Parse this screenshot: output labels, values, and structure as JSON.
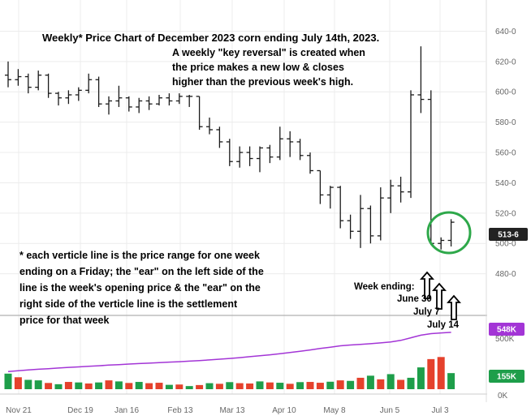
{
  "annotations": {
    "title": "Weekly* Price Chart of December 2023 corn ending July 14th, 2023.",
    "key_reversal": [
      "A weekly \"key reversal\" is created when",
      "the price makes a new low & closes",
      "higher than the previous week's high."
    ],
    "footnote": [
      "* each verticle line is the price range for one week",
      "ending on a Friday; the \"ear\" on the left side of the",
      "line is the week's opening price & the \"ear\" on the",
      "right side of the verticle line is the settlement",
      "price for that week"
    ],
    "week_ending": "Week ending:",
    "june30": "June 30",
    "july7": "July  7",
    "july14": "July 14"
  },
  "badges": {
    "price": "513-6",
    "ma": "548K",
    "volume": "155K"
  },
  "colors": {
    "price_bar": "#1a1a1a",
    "ma_line": "#a335d6",
    "vol_up": "#1e9e4a",
    "vol_down": "#e5412c",
    "circle": "#2ea84a",
    "badge_dark": "#222222",
    "badge_purple": "#a335d6",
    "badge_green": "#1e9e4a"
  },
  "chart_data": {
    "type": "ohlc",
    "title": "Weekly* Price Chart of December 2023 corn ending July 14th, 2023.",
    "x_tick_labels": [
      "Nov 21",
      "Dec 19",
      "Jan 16",
      "Feb 13",
      "Mar 13",
      "Apr 10",
      "May 8",
      "Jun 5",
      "Jul 3"
    ],
    "y_price_ticks": [
      "480-0",
      "500-0",
      "520-0",
      "540-0",
      "560-0",
      "580-0",
      "600-0",
      "620-0",
      "640-0"
    ],
    "y_price_range": [
      452,
      652
    ],
    "y_volume_ticks": [
      "0K",
      "500K"
    ],
    "grid": true,
    "last_price": "513-6",
    "weeks": [
      {
        "o": 611,
        "h": 620,
        "l": 603,
        "c": 608
      },
      {
        "o": 608,
        "h": 615,
        "l": 604,
        "c": 610
      },
      {
        "o": 610,
        "h": 612,
        "l": 599,
        "c": 603
      },
      {
        "o": 603,
        "h": 614,
        "l": 601,
        "c": 611
      },
      {
        "o": 611,
        "h": 612,
        "l": 596,
        "c": 599
      },
      {
        "o": 599,
        "h": 600,
        "l": 591,
        "c": 596
      },
      {
        "o": 596,
        "h": 601,
        "l": 592,
        "c": 598
      },
      {
        "o": 598,
        "h": 603,
        "l": 594,
        "c": 601
      },
      {
        "o": 601,
        "h": 612,
        "l": 599,
        "c": 608
      },
      {
        "o": 608,
        "h": 610,
        "l": 590,
        "c": 592
      },
      {
        "o": 592,
        "h": 597,
        "l": 585,
        "c": 594
      },
      {
        "o": 594,
        "h": 604,
        "l": 590,
        "c": 596
      },
      {
        "o": 596,
        "h": 597,
        "l": 587,
        "c": 590
      },
      {
        "o": 590,
        "h": 596,
        "l": 586,
        "c": 594
      },
      {
        "o": 594,
        "h": 597,
        "l": 588,
        "c": 592
      },
      {
        "o": 592,
        "h": 598,
        "l": 591,
        "c": 596
      },
      {
        "o": 596,
        "h": 599,
        "l": 591,
        "c": 594
      },
      {
        "o": 594,
        "h": 599,
        "l": 592,
        "c": 597
      },
      {
        "o": 597,
        "h": 598,
        "l": 590,
        "c": 597
      },
      {
        "o": 597,
        "h": 597,
        "l": 575,
        "c": 577
      },
      {
        "o": 577,
        "h": 583,
        "l": 572,
        "c": 575
      },
      {
        "o": 575,
        "h": 577,
        "l": 563,
        "c": 567
      },
      {
        "o": 567,
        "h": 569,
        "l": 551,
        "c": 554
      },
      {
        "o": 554,
        "h": 564,
        "l": 550,
        "c": 560
      },
      {
        "o": 560,
        "h": 564,
        "l": 551,
        "c": 556
      },
      {
        "o": 556,
        "h": 564,
        "l": 547,
        "c": 563
      },
      {
        "o": 563,
        "h": 565,
        "l": 553,
        "c": 557
      },
      {
        "o": 557,
        "h": 577,
        "l": 555,
        "c": 569
      },
      {
        "o": 569,
        "h": 574,
        "l": 557,
        "c": 567
      },
      {
        "o": 567,
        "h": 569,
        "l": 555,
        "c": 558
      },
      {
        "o": 558,
        "h": 560,
        "l": 546,
        "c": 548
      },
      {
        "o": 548,
        "h": 548,
        "l": 526,
        "c": 532
      },
      {
        "o": 532,
        "h": 538,
        "l": 523,
        "c": 537
      },
      {
        "o": 537,
        "h": 538,
        "l": 510,
        "c": 515
      },
      {
        "o": 515,
        "h": 519,
        "l": 503,
        "c": 508
      },
      {
        "o": 508,
        "h": 532,
        "l": 497,
        "c": 523
      },
      {
        "o": 523,
        "h": 525,
        "l": 500,
        "c": 505
      },
      {
        "o": 505,
        "h": 537,
        "l": 502,
        "c": 530
      },
      {
        "o": 530,
        "h": 542,
        "l": 520,
        "c": 538
      },
      {
        "o": 538,
        "h": 544,
        "l": 527,
        "c": 534
      },
      {
        "o": 534,
        "h": 601,
        "l": 530,
        "c": 598
      },
      {
        "o": 598,
        "h": 630,
        "l": 586,
        "c": 595
      },
      {
        "o": 595,
        "h": 601,
        "l": 499,
        "c": 500
      },
      {
        "o": 500,
        "h": 504,
        "l": 496,
        "c": 502
      },
      {
        "o": 502,
        "h": 516,
        "l": 498,
        "c": 514
      }
    ],
    "volume": [
      150,
      115,
      90,
      85,
      60,
      48,
      70,
      65,
      55,
      65,
      85,
      75,
      60,
      70,
      58,
      62,
      42,
      45,
      30,
      40,
      58,
      52,
      68,
      58,
      55,
      75,
      65,
      62,
      52,
      68,
      70,
      62,
      72,
      85,
      80,
      110,
      130,
      95,
      145,
      90,
      110,
      210,
      290,
      310,
      155
    ],
    "volume_up": [
      true,
      false,
      true,
      true,
      false,
      true,
      false,
      true,
      false,
      true,
      false,
      true,
      false,
      true,
      false,
      false,
      true,
      false,
      true,
      false,
      true,
      false,
      true,
      false,
      false,
      true,
      false,
      true,
      false,
      true,
      false,
      false,
      true,
      false,
      true,
      false,
      true,
      false,
      true,
      false,
      true,
      true,
      false,
      false,
      true
    ],
    "ma_volume": [
      170,
      178,
      185,
      192,
      198,
      204,
      210,
      215,
      220,
      226,
      232,
      237,
      242,
      247,
      251,
      256,
      261,
      265,
      270,
      276,
      282,
      289,
      296,
      304,
      313,
      322,
      331,
      342,
      353,
      365,
      378,
      392,
      405,
      418,
      426,
      432,
      438,
      446,
      455,
      470,
      495,
      520,
      535,
      542,
      548
    ]
  }
}
